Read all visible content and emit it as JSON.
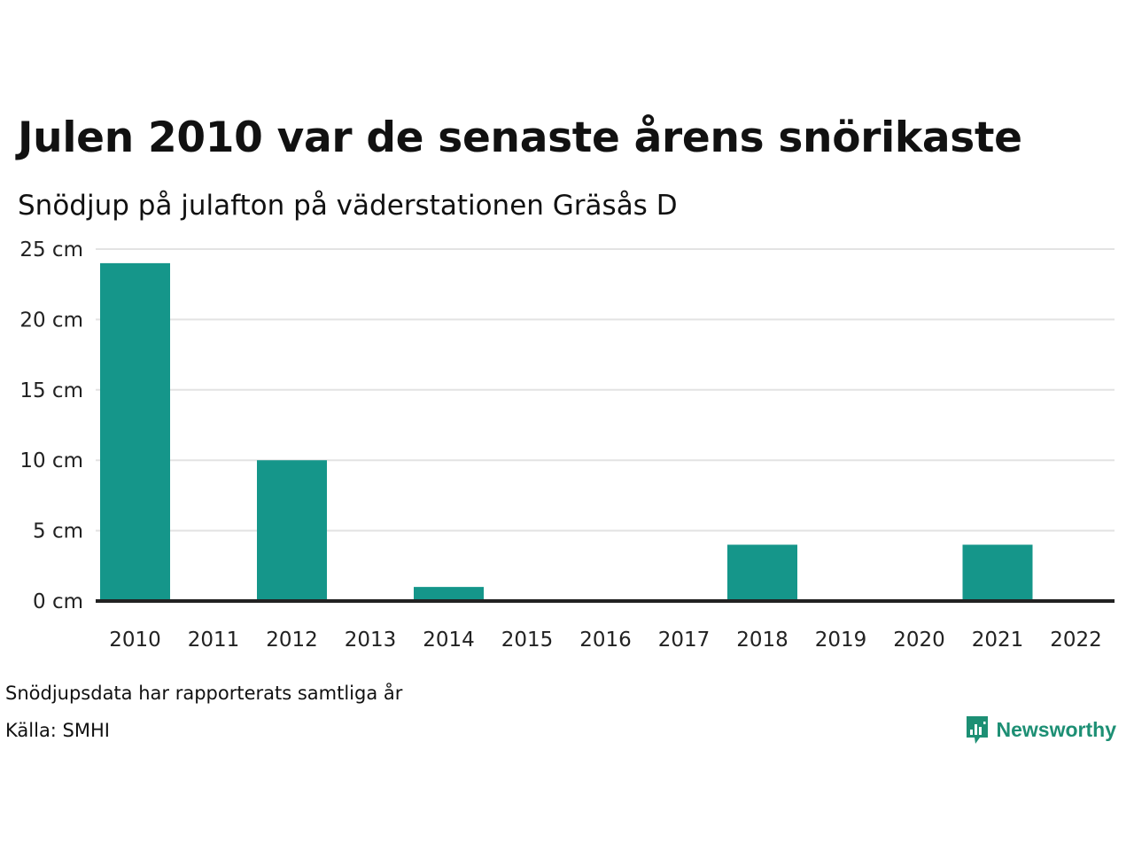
{
  "chart_data": {
    "type": "bar",
    "title": "Julen 2010 var de senaste årens snörikaste",
    "subtitle": "Snödjup på julafton på väderstationen Gräsås D",
    "categories": [
      "2010",
      "2011",
      "2012",
      "2013",
      "2014",
      "2015",
      "2016",
      "2017",
      "2018",
      "2019",
      "2020",
      "2021",
      "2022"
    ],
    "values": [
      24,
      0,
      10,
      0,
      1,
      0,
      0,
      0,
      4,
      0,
      0,
      4,
      0
    ],
    "ylim": [
      0,
      25
    ],
    "yticks": [
      0,
      5,
      10,
      15,
      20,
      25
    ],
    "ytick_labels": [
      "0 cm",
      "5 cm",
      "10 cm",
      "15 cm",
      "20 cm",
      "25 cm"
    ],
    "xlabel": "",
    "ylabel": "",
    "grid": true,
    "bar_color": "#15968a",
    "baseline_color": "#222222",
    "grid_color": "#e3e3e3"
  },
  "footer": {
    "note": "Snödjupsdata har rapporterats samtliga år",
    "source": "Källa: SMHI"
  },
  "brand": {
    "name": "Newsworthy",
    "color": "#1d8f74",
    "icon": "newsworthy-logo-icon"
  }
}
